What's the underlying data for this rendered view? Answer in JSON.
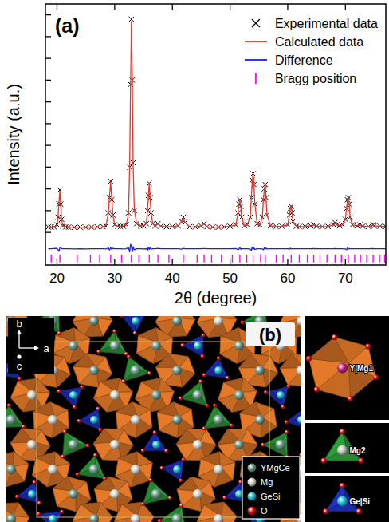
{
  "chart_data": {
    "type": "line",
    "label": "(a)",
    "x_label": "2θ (degree)",
    "y_label": "Intensity (a.u.)",
    "x": [
      18.5,
      19,
      19.5,
      20,
      20.2,
      20.35,
      20.5,
      20.65,
      20.8,
      21,
      21.5,
      22,
      23,
      24,
      25,
      26,
      27,
      28,
      28.5,
      28.9,
      29.1,
      29.3,
      29.5,
      29.7,
      30,
      30.5,
      31,
      31.5,
      32,
      32.4,
      32.6,
      32.75,
      32.9,
      33.05,
      33.2,
      33.4,
      33.8,
      34.5,
      35,
      35.5,
      35.7,
      35.85,
      36,
      36.15,
      36.3,
      36.6,
      37,
      37.5,
      38,
      39,
      40,
      41,
      41.6,
      41.9,
      42.2,
      43,
      44,
      45,
      45.5,
      46,
      47,
      48,
      49,
      50,
      51,
      51.4,
      51.55,
      51.7,
      51.85,
      52,
      52.5,
      53,
      53.5,
      53.7,
      53.85,
      54,
      54.15,
      54.3,
      54.7,
      55.2,
      55.6,
      55.8,
      55.95,
      56.1,
      56.25,
      56.4,
      57,
      58,
      59,
      60,
      60.3,
      60.45,
      60.6,
      60.75,
      60.9,
      61.5,
      62,
      63,
      64,
      64.5,
      65,
      66,
      67,
      68,
      68.2,
      68.5,
      69,
      69.5,
      70,
      70.2,
      70.35,
      70.5,
      70.65,
      70.8,
      71.2,
      72,
      72.5,
      73,
      74,
      74.8,
      75,
      76,
      77
    ],
    "xlim": [
      18,
      77
    ],
    "xticks": [
      20,
      30,
      40,
      50,
      60,
      70
    ],
    "ylim": [
      -15,
      105
    ],
    "yticks": [
      0,
      10,
      20,
      30,
      40,
      50,
      60,
      70,
      80,
      90,
      100
    ],
    "tick_labels": "x",
    "legend": "upper right",
    "series": [
      {
        "name": "Experimental data",
        "type": "scatter",
        "marker": "x",
        "color": "#000000",
        "values": [
          2.5,
          2.4,
          2.5,
          3.5,
          7,
          13,
          19.5,
          13,
          6,
          3,
          2.5,
          2.4,
          2.3,
          2.4,
          2.3,
          2.4,
          2.5,
          2.6,
          3,
          9,
          16,
          23.5,
          15,
          8,
          3.5,
          2.8,
          2.7,
          2.8,
          3.5,
          9,
          30,
          68,
          98,
          70,
          32,
          10,
          4,
          3,
          3,
          4,
          10,
          17,
          22.5,
          16,
          9,
          4,
          3,
          4,
          2.8,
          2.6,
          2.7,
          3,
          5,
          7,
          4.5,
          2.6,
          2.5,
          3,
          4,
          2.6,
          2.4,
          2.4,
          2.5,
          2.8,
          3.5,
          9,
          13,
          15,
          12,
          7,
          3,
          3.5,
          7,
          16,
          24,
          27,
          22,
          13,
          4,
          3.5,
          7,
          15,
          20,
          22,
          16,
          8,
          3,
          2.7,
          2.8,
          3.5,
          8,
          11,
          12,
          9,
          5,
          2.8,
          2.6,
          2.7,
          3,
          3.5,
          2.8,
          2.6,
          2.7,
          3.5,
          4.5,
          3.5,
          3,
          3.5,
          6,
          11,
          15,
          16,
          13,
          7,
          3.5,
          3,
          3.5,
          2.8,
          2.7,
          3.5,
          3,
          2.8,
          2.7
        ]
      },
      {
        "name": "Calculated data",
        "type": "line",
        "color": "#e8342c",
        "values": [
          2.5,
          2.4,
          2.4,
          3.3,
          7.6,
          14.2,
          19,
          12.4,
          6,
          3,
          2.5,
          2.4,
          2.4,
          2.4,
          2.4,
          2.4,
          2.5,
          2.6,
          3.1,
          8.6,
          16.6,
          23,
          15.3,
          7.8,
          3.5,
          2.8,
          2.7,
          2.9,
          3.5,
          8.5,
          31.5,
          66,
          97,
          71.5,
          31,
          10.5,
          4,
          3,
          3.1,
          4,
          10.6,
          16.4,
          22.8,
          15.6,
          9.2,
          4,
          3,
          3.8,
          2.8,
          2.6,
          2.7,
          3,
          5.2,
          6.8,
          4.5,
          2.6,
          2.5,
          3,
          3.9,
          2.6,
          2.4,
          2.4,
          2.5,
          2.8,
          3.4,
          9.4,
          13.2,
          14.6,
          12.2,
          7,
          3,
          3.5,
          7.2,
          16.8,
          23.2,
          27.4,
          21.6,
          13.3,
          4,
          3.5,
          7.1,
          15.5,
          19.6,
          22.2,
          15.7,
          8.1,
          3,
          2.7,
          2.8,
          3.5,
          8.2,
          10.8,
          12.1,
          9,
          5,
          2.8,
          2.6,
          2.7,
          3,
          3.4,
          2.8,
          2.6,
          2.7,
          3.5,
          4.4,
          3.5,
          3,
          3.5,
          6.1,
          11.5,
          14.6,
          16.1,
          12.9,
          7,
          3.5,
          3,
          3.5,
          2.8,
          2.7,
          3.4,
          3,
          2.8,
          2.7
        ]
      },
      {
        "name": "Difference",
        "type": "line",
        "color": "#1a1aff",
        "values": [
          -7.5,
          -7.5,
          -7.4,
          -7.3,
          -8.1,
          -8.7,
          -7,
          -6.9,
          -7.5,
          -7.5,
          -7.5,
          -7.5,
          -7.6,
          -7.5,
          -7.6,
          -7.5,
          -7.5,
          -7.5,
          -7.6,
          -7.1,
          -8.1,
          -7,
          -7.8,
          -7.3,
          -7.5,
          -7.5,
          -7.5,
          -7.6,
          -7.5,
          -7,
          -9,
          -5.5,
          -6.5,
          -9,
          -6.5,
          -8,
          -7.5,
          -7.5,
          -7.6,
          -7.5,
          -8.1,
          -6.9,
          -7.8,
          -7.1,
          -7.7,
          -7.5,
          -7.5,
          -7.3,
          -7.5,
          -7.5,
          -7.5,
          -7.5,
          -7.7,
          -7.3,
          -7.5,
          -7.5,
          -7.5,
          -7.5,
          -7.4,
          -7.5,
          -7.5,
          -7.5,
          -7.5,
          -7.5,
          -7.4,
          -7.9,
          -7.7,
          -7.1,
          -7.7,
          -7.5,
          -7.5,
          -7.5,
          -7.7,
          -8.3,
          -6.7,
          -7.9,
          -7.1,
          -7.8,
          -7.5,
          -7.5,
          -7.6,
          -8,
          -7.1,
          -7.7,
          -7.2,
          -7.6,
          -7.5,
          -7.5,
          -7.5,
          -7.5,
          -7.7,
          -7.3,
          -7.6,
          -7.5,
          -7.5,
          -7.5,
          -7.5,
          -7.5,
          -7.5,
          -7.4,
          -7.5,
          -7.5,
          -7.5,
          -7.5,
          -7.4,
          -7.5,
          -7.5,
          -7.5,
          -7.6,
          -8,
          -7.1,
          -7.6,
          -7.4,
          -7.5,
          -7.5,
          -7.5,
          -7.5,
          -7.5,
          -7.5,
          -7.4,
          -7.5,
          -7.5,
          -7.5
        ]
      },
      {
        "name": "Bragg position",
        "type": "scatter",
        "marker": "|",
        "color": "#ff00ff",
        "x": [
          19,
          20.5,
          23.5,
          25.8,
          27.4,
          29.3,
          31.2,
          32.9,
          34.2,
          36,
          37.5,
          39.4,
          41.9,
          44.3,
          45.5,
          46.8,
          48.5,
          50.4,
          51.7,
          52.9,
          54,
          55.3,
          56.1,
          58,
          59.2,
          60.6,
          62,
          63.4,
          64.5,
          65.6,
          66.8,
          68.2,
          69.3,
          70.5,
          71.6,
          72.6,
          73.7,
          74.8,
          75.9,
          76.8
        ],
        "values": [
          -12,
          -12,
          -12,
          -12,
          -12,
          -12,
          -12,
          -12,
          -12,
          -12,
          -12,
          -12,
          -12,
          -12,
          -12,
          -12,
          -12,
          -12,
          -12,
          -12,
          -12,
          -12,
          -12,
          -12,
          -12,
          -12,
          -12,
          -12,
          -12,
          -12,
          -12,
          -12,
          -12,
          -12,
          -12,
          -12,
          -12,
          -12,
          -12,
          -12
        ]
      }
    ]
  },
  "structure": {
    "label": "(b)",
    "axes": [
      "a",
      "b",
      "c"
    ],
    "legend": [
      {
        "name": "YMgCe",
        "color": "#6f9c8c"
      },
      {
        "name": "Mg",
        "color": "#d8d8d0"
      },
      {
        "name": "GeSi",
        "color": "#22c8dc"
      },
      {
        "name": "O",
        "color": "#e01010"
      }
    ],
    "polyhedra": [
      {
        "label": "Y|Mg1",
        "color": "#e07828",
        "atom_color": "#c0208a"
      },
      {
        "label": "Mg2",
        "color": "#2e9a38",
        "atom_color": "#c8c8c0"
      },
      {
        "label": "Ge|Si",
        "color": "#2030c0",
        "atom_color": "#22c8dc"
      }
    ]
  }
}
